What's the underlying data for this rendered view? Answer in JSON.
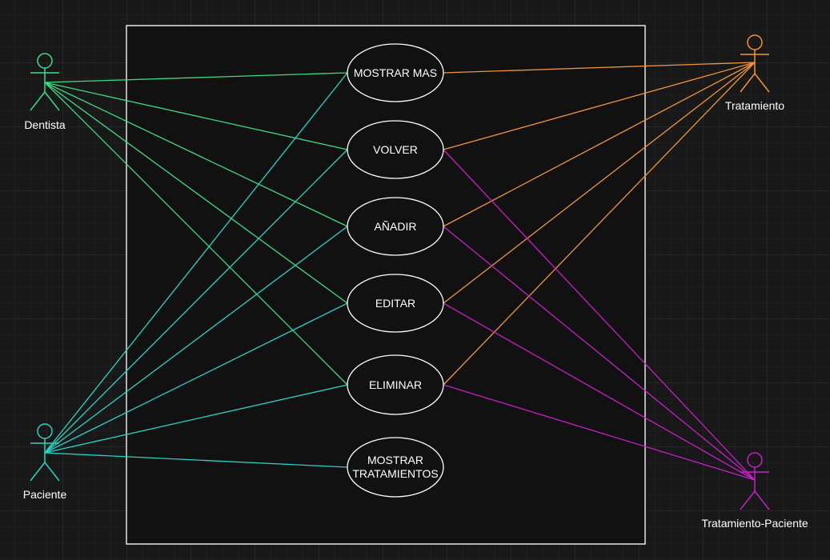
{
  "colors": {
    "background": "#181818",
    "dentista": "#3ddc84",
    "paciente": "#29d3c9",
    "tratamiento": "#f0953b",
    "tratamiento_paciente": "#c81ec8",
    "boundary": "#e6e6e6",
    "use_case_fill": "#111111",
    "use_case_stroke": "#ffffff"
  },
  "actors": {
    "dentista": {
      "label": "Dentista",
      "icon": "stick-figure"
    },
    "paciente": {
      "label": "Paciente",
      "icon": "stick-figure"
    },
    "tratamiento": {
      "label": "Tratamiento",
      "icon": "stick-figure"
    },
    "tratamiento_paciente": {
      "label": "Tratamiento-Paciente",
      "icon": "stick-figure"
    }
  },
  "use_cases": {
    "mostrar_mas": {
      "label": "MOSTRAR MAS"
    },
    "volver": {
      "label": "VOLVER"
    },
    "anadir": {
      "label": "AÑADIR"
    },
    "editar": {
      "label": "EDITAR"
    },
    "eliminar": {
      "label": "ELIMINAR"
    },
    "mostrar_tratamientos": {
      "line1": "MOSTRAR",
      "line2": "TRATAMIENTOS"
    }
  }
}
